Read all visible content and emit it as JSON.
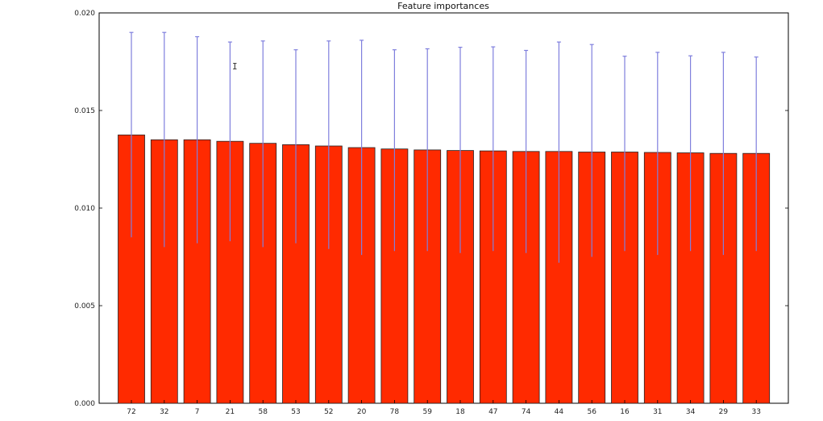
{
  "chart_data": {
    "type": "bar",
    "title": "Feature importances",
    "xlabel": "",
    "ylabel": "",
    "categories": [
      "72",
      "32",
      "7",
      "21",
      "58",
      "53",
      "52",
      "20",
      "78",
      "59",
      "18",
      "47",
      "74",
      "44",
      "56",
      "16",
      "31",
      "34",
      "29",
      "33"
    ],
    "values": [
      0.01375,
      0.0135,
      0.0135,
      0.01342,
      0.01332,
      0.01325,
      0.01318,
      0.0131,
      0.01303,
      0.01298,
      0.01295,
      0.01293,
      0.0129,
      0.0129,
      0.01287,
      0.01287,
      0.01285,
      0.01283,
      0.0128,
      0.0128
    ],
    "error_upper": [
      0.019,
      0.019,
      0.01878,
      0.01851,
      0.01856,
      0.01811,
      0.01856,
      0.0186,
      0.01811,
      0.01816,
      0.01824,
      0.01826,
      0.01808,
      0.01851,
      0.01838,
      0.01778,
      0.01798,
      0.0178,
      0.01798,
      0.01774
    ],
    "error_lower": [
      0.0085,
      0.008,
      0.0082,
      0.0083,
      0.008,
      0.0082,
      0.0079,
      0.0076,
      0.0078,
      0.0078,
      0.0077,
      0.0078,
      0.0077,
      0.0072,
      0.0075,
      0.0078,
      0.0076,
      0.0078,
      0.0076,
      0.0078
    ],
    "yticks": [
      "0.000",
      "0.005",
      "0.010",
      "0.015",
      "0.020"
    ],
    "ylim": [
      0,
      0.02
    ],
    "grid": false,
    "legend": "none",
    "colors": {
      "bar": "#ff2a00",
      "bar_edge": "#222222",
      "error": "#7f7fdd",
      "axis": "#000000"
    }
  }
}
